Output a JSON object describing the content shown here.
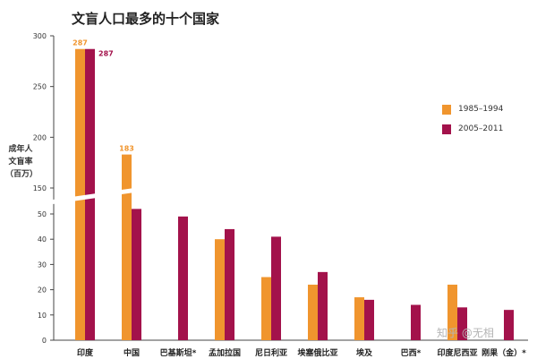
{
  "chart_data": {
    "type": "bar",
    "title": "文盲人口最多的十个国家",
    "ylabel": "成年人\n文盲率\n（百万）",
    "categories": [
      "印度",
      "中国",
      "巴基斯坦*",
      "孟加拉国",
      "尼日利亚",
      "埃塞俄比亚",
      "埃及",
      "巴西*",
      "印度尼西亚",
      "刚果（金）*"
    ],
    "series": [
      {
        "name": "1985–1994",
        "color": "#f0952e",
        "values": [
          287,
          183,
          null,
          40,
          25,
          22,
          17,
          null,
          22,
          null
        ]
      },
      {
        "name": "2005–2011",
        "color": "#a3124b",
        "values": [
          287,
          52,
          49,
          44,
          41,
          27,
          16,
          14,
          13,
          12
        ]
      }
    ],
    "value_labels": [
      {
        "category": "印度",
        "series": 0,
        "text": "287"
      },
      {
        "category": "印度",
        "series": 1,
        "text": "287"
      },
      {
        "category": "中国",
        "series": 0,
        "text": "183"
      }
    ],
    "yaxis": {
      "broken": true,
      "lower_range": [
        0,
        55
      ],
      "upper_range": [
        150,
        300
      ],
      "lower_ticks": [
        0,
        10,
        20,
        30,
        40,
        50
      ],
      "upper_ticks": [
        150,
        200,
        250,
        300
      ]
    },
    "legend_position": "right",
    "grid": false
  },
  "watermark": "知乎 @无相"
}
